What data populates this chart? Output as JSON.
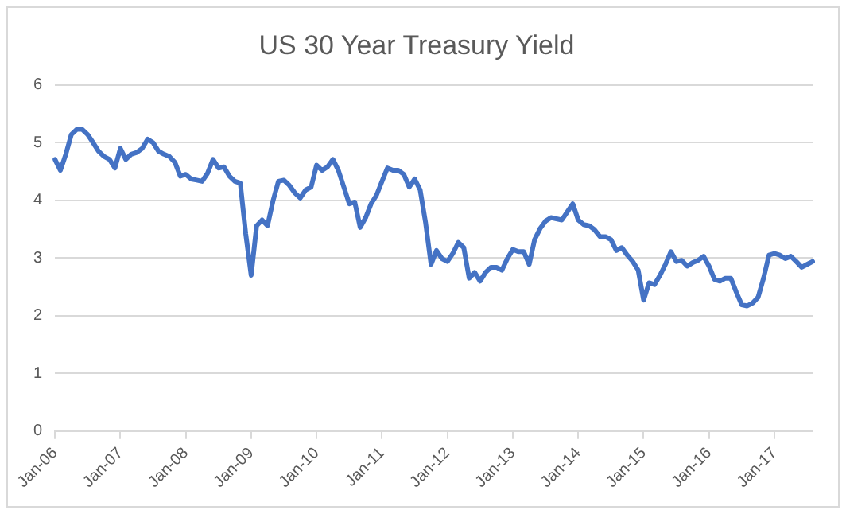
{
  "chart_data": {
    "type": "line",
    "title": "US 30 Year Treasury Yield",
    "categories": [
      "Jan-06",
      null,
      null,
      null,
      null,
      null,
      null,
      null,
      null,
      null,
      null,
      null,
      "Jan-07",
      null,
      null,
      null,
      null,
      null,
      null,
      null,
      null,
      null,
      null,
      null,
      "Jan-08",
      null,
      null,
      null,
      null,
      null,
      null,
      null,
      null,
      null,
      null,
      null,
      "Jan-09",
      null,
      null,
      null,
      null,
      null,
      null,
      null,
      null,
      null,
      null,
      null,
      "Jan-10",
      null,
      null,
      null,
      null,
      null,
      null,
      null,
      null,
      null,
      null,
      null,
      "Jan-11",
      null,
      null,
      null,
      null,
      null,
      null,
      null,
      null,
      null,
      null,
      null,
      "Jan-12",
      null,
      null,
      null,
      null,
      null,
      null,
      null,
      null,
      null,
      null,
      null,
      "Jan-13",
      null,
      null,
      null,
      null,
      null,
      null,
      null,
      null,
      null,
      null,
      null,
      "Jan-14",
      null,
      null,
      null,
      null,
      null,
      null,
      null,
      null,
      null,
      null,
      null,
      "Jan-15",
      null,
      null,
      null,
      null,
      null,
      null,
      null,
      null,
      null,
      null,
      null,
      "Jan-16",
      null,
      null,
      null,
      null,
      null,
      null,
      null,
      null,
      null,
      null,
      null,
      "Jan-17",
      null,
      null,
      null,
      null,
      null,
      null,
      null
    ],
    "series": [
      {
        "color": "#4472c4",
        "values": [
          4.71,
          4.52,
          4.8,
          5.14,
          5.23,
          5.23,
          5.14,
          5.0,
          4.85,
          4.76,
          4.71,
          4.56,
          4.9,
          4.71,
          4.8,
          4.83,
          4.9,
          5.06,
          5.0,
          4.85,
          4.8,
          4.76,
          4.66,
          4.42,
          4.45,
          4.37,
          4.35,
          4.33,
          4.47,
          4.71,
          4.56,
          4.58,
          4.42,
          4.33,
          4.3,
          3.42,
          2.7,
          3.56,
          3.66,
          3.56,
          3.99,
          4.33,
          4.35,
          4.26,
          4.13,
          4.04,
          4.18,
          4.23,
          4.61,
          4.52,
          4.58,
          4.71,
          4.52,
          4.23,
          3.94,
          3.97,
          3.53,
          3.7,
          3.94,
          4.09,
          4.33,
          4.56,
          4.52,
          4.52,
          4.45,
          4.23,
          4.37,
          4.18,
          3.61,
          2.89,
          3.13,
          2.99,
          2.94,
          3.08,
          3.27,
          3.18,
          2.65,
          2.75,
          2.6,
          2.75,
          2.84,
          2.84,
          2.79,
          2.99,
          3.15,
          3.11,
          3.11,
          2.89,
          3.32,
          3.51,
          3.64,
          3.7,
          3.68,
          3.66,
          3.8,
          3.94,
          3.66,
          3.58,
          3.56,
          3.49,
          3.37,
          3.37,
          3.32,
          3.13,
          3.18,
          3.05,
          2.94,
          2.79,
          2.27,
          2.57,
          2.54,
          2.7,
          2.89,
          3.11,
          2.94,
          2.96,
          2.86,
          2.92,
          2.96,
          3.03,
          2.86,
          2.63,
          2.6,
          2.65,
          2.65,
          2.41,
          2.19,
          2.17,
          2.22,
          2.32,
          2.65,
          3.05,
          3.08,
          3.05,
          2.99,
          3.03,
          2.94,
          2.84,
          2.89,
          2.94
        ]
      }
    ],
    "ylim": [
      0,
      6
    ],
    "yticks": [
      0,
      1,
      2,
      3,
      4,
      5,
      6
    ],
    "grid": "y",
    "legend": false,
    "marker": "none",
    "line_style": "solid"
  }
}
